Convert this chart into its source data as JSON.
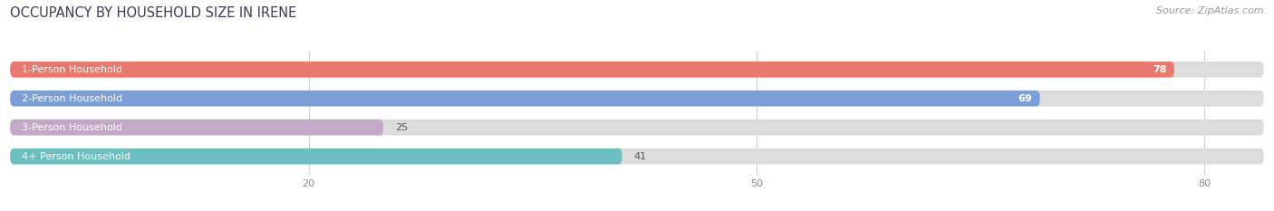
{
  "title": "OCCUPANCY BY HOUSEHOLD SIZE IN IRENE",
  "source": "Source: ZipAtlas.com",
  "categories": [
    "1-Person Household",
    "2-Person Household",
    "3-Person Household",
    "4+ Person Household"
  ],
  "values": [
    78,
    69,
    25,
    41
  ],
  "bar_colors": [
    "#E8796E",
    "#7B9FD4",
    "#C4A8C8",
    "#6BBFC0"
  ],
  "label_colors": [
    "white",
    "white",
    "dark",
    "dark"
  ],
  "xlim": [
    0,
    84
  ],
  "xticks": [
    20,
    50,
    80
  ],
  "title_color": "#3a3a5a",
  "source_color": "#999999",
  "bar_bg_color": "#dcdcdc",
  "title_fontsize": 10.5,
  "label_fontsize": 8,
  "value_fontsize": 8,
  "tick_fontsize": 8,
  "bar_height": 0.55,
  "figsize": [
    14.06,
    2.33
  ],
  "dpi": 100
}
